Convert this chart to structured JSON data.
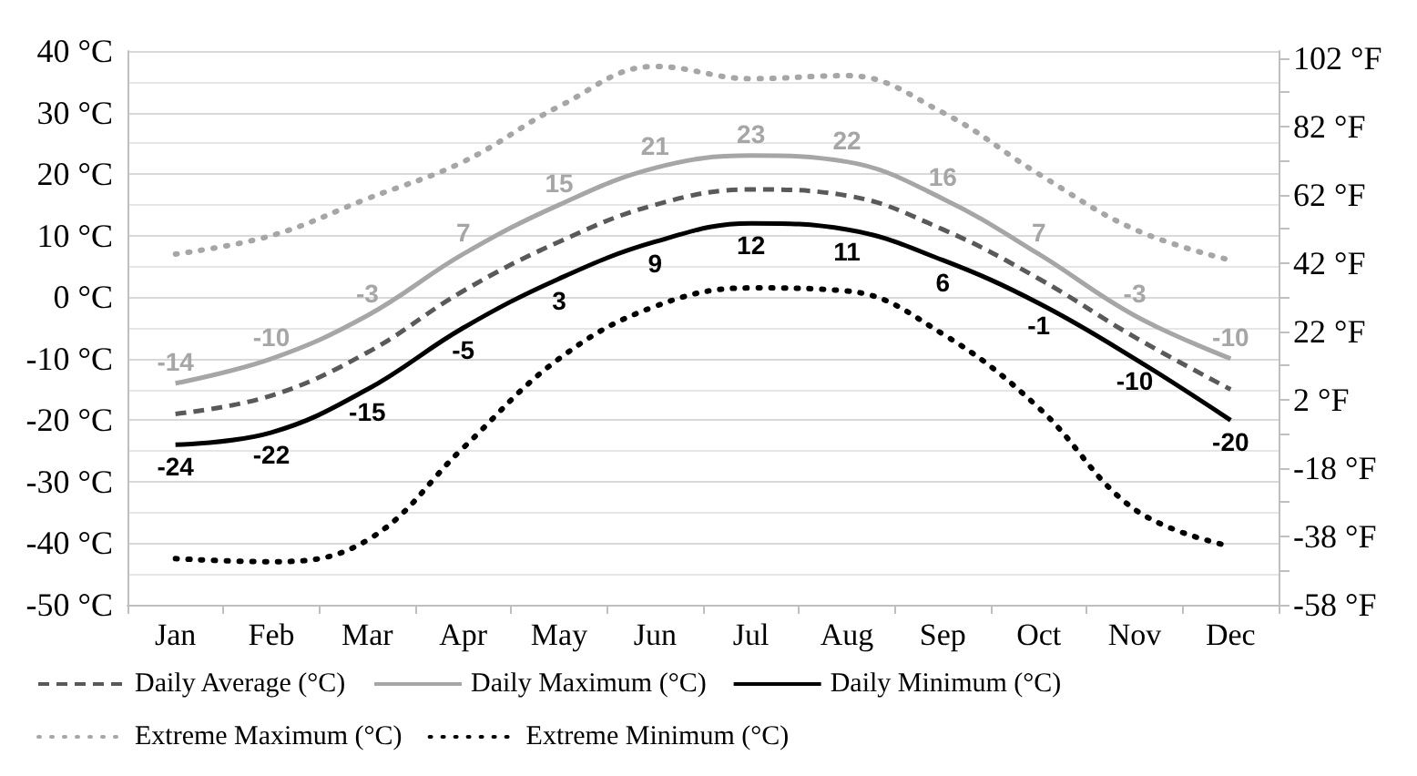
{
  "chart_data": {
    "type": "line",
    "categories": [
      "Jan",
      "Feb",
      "Mar",
      "Apr",
      "May",
      "Jun",
      "Jul",
      "Aug",
      "Sep",
      "Oct",
      "Nov",
      "Dec"
    ],
    "series": [
      {
        "name": "Daily Average (°C)",
        "color": "#595959",
        "line_style": "dashed",
        "values": [
          -19,
          -16,
          -9,
          1,
          9,
          15,
          17.5,
          16.5,
          11,
          3,
          -6.5,
          -15
        ]
      },
      {
        "name": "Daily Maximum (°C)",
        "color": "#a6a6a6",
        "line_style": "solid",
        "values": [
          -14,
          -10,
          -3,
          7,
          15,
          21,
          23,
          22,
          16,
          7,
          -3,
          -10
        ],
        "value_labels": [
          "-14",
          "-10",
          "-3",
          "7",
          "15",
          "21",
          "23",
          "22",
          "16",
          "7",
          "-3",
          "-10"
        ]
      },
      {
        "name": "Daily Minimum (°C)",
        "color": "#000000",
        "line_style": "solid",
        "values": [
          -24,
          -22,
          -15,
          -5,
          3,
          9,
          12,
          11,
          6,
          -1,
          -10,
          -20
        ],
        "value_labels": [
          "-24",
          "-22",
          "-15",
          "-5",
          "3",
          "9",
          "12",
          "11",
          "6",
          "-1",
          "-10",
          "-20"
        ]
      },
      {
        "name": "Extreme Maximum (°C)",
        "color": "#a6a6a6",
        "line_style": "dotted",
        "values": [
          7,
          10,
          16,
          22,
          31,
          37.5,
          35.5,
          36,
          30,
          20,
          11,
          6
        ]
      },
      {
        "name": "Extreme Minimum (°C)",
        "color": "#000000",
        "line_style": "dotted",
        "values": [
          -42.5,
          -43,
          -39.5,
          -24.5,
          -10,
          -1.5,
          1.5,
          1,
          -6,
          -18,
          -34.5,
          -40.5
        ]
      }
    ],
    "ylim": [
      -50,
      40
    ],
    "yticks": [
      {
        "value": -50,
        "label": "-50 °C"
      },
      {
        "value": -40,
        "label": "-40 °C"
      },
      {
        "value": -30,
        "label": "-30 °C"
      },
      {
        "value": -20,
        "label": "-20 °C"
      },
      {
        "value": -10,
        "label": "-10 °C"
      },
      {
        "value": 0,
        "label": "0 °C"
      },
      {
        "value": 10,
        "label": "10 °C"
      },
      {
        "value": 20,
        "label": "20 °C"
      },
      {
        "value": 30,
        "label": "30 °C"
      },
      {
        "value": 40,
        "label": "40 °C"
      }
    ],
    "y2lim": [
      -58,
      104
    ],
    "y2ticks": [
      {
        "value": -58,
        "label": "-58 °F"
      },
      {
        "value": -38,
        "label": "-38 °F"
      },
      {
        "value": -18,
        "label": "-18 °F"
      },
      {
        "value": 2,
        "label": "2 °F"
      },
      {
        "value": 22,
        "label": "22 °F"
      },
      {
        "value": 42,
        "label": "42 °F"
      },
      {
        "value": 62,
        "label": "62 °F"
      },
      {
        "value": 82,
        "label": "82 °F"
      },
      {
        "value": 102,
        "label": "102 °F"
      }
    ],
    "grid": "y",
    "legend": "bottom",
    "marker": "none"
  }
}
